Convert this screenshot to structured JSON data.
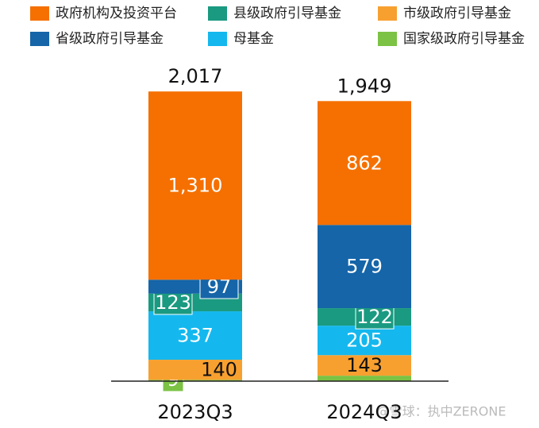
{
  "chart_data": {
    "type": "stacked-bar",
    "categories": [
      "2023Q3",
      "2024Q3"
    ],
    "series": [
      {
        "name": "国家级政府引导基金",
        "color": "#7cc244",
        "values": [
          9,
          38
        ],
        "value_labels": [
          "9",
          null
        ]
      },
      {
        "name": "市级政府引导基金",
        "color": "#f7a030",
        "values": [
          140,
          143
        ]
      },
      {
        "name": "母基金",
        "color": "#14b8ee",
        "values": [
          337,
          205
        ]
      },
      {
        "name": "县级政府引导基金",
        "color": "#1a9a80",
        "values": [
          123,
          122
        ]
      },
      {
        "name": "省级政府引导基金",
        "color": "#1565a8",
        "values": [
          97,
          579
        ]
      },
      {
        "name": "政府机构及投资平台",
        "color": "#f57000",
        "values": [
          1310,
          862
        ],
        "value_labels": [
          "1,310",
          "862"
        ]
      }
    ],
    "totals": {
      "values": [
        2017,
        1949
      ],
      "value_labels": [
        "2,017",
        "1,949"
      ]
    },
    "watermark": "@雪球：执中ZERONE"
  }
}
